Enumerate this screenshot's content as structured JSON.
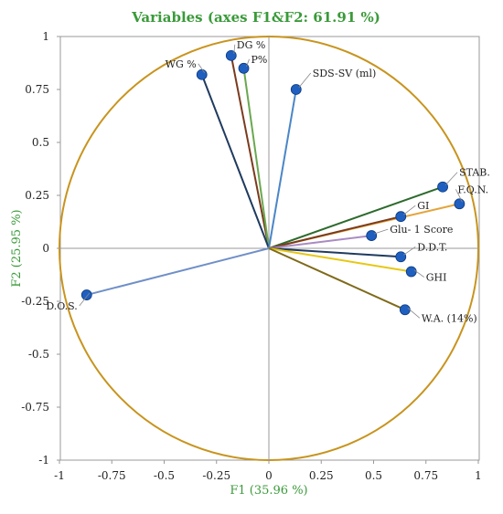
{
  "chart_data": {
    "type": "scatter",
    "title": "Variables (axes F1&F2: 61.91 %)",
    "xlabel": "F1 (35.96 %)",
    "ylabel": "F2 (25.95 %)",
    "xlim": [
      -1,
      1
    ],
    "ylim": [
      -1,
      1
    ],
    "x_ticks": [
      "-1",
      "-0.75",
      "-0.5",
      "-0.25",
      "0",
      "0.25",
      "0.5",
      "0.75",
      "1"
    ],
    "y_ticks": [
      "1",
      "0.75",
      "0.5",
      "0.25",
      "0",
      "-0.25",
      "-0.5",
      "-0.75",
      "-1"
    ],
    "grid": false,
    "circle_color": "#c8941e",
    "point_color": "#1f5fbf",
    "points": [
      {
        "label": "DG %",
        "x": -0.18,
        "y": 0.91,
        "color": "#7a3b1e"
      },
      {
        "label": "P%",
        "x": -0.12,
        "y": 0.85,
        "color": "#6aa84f"
      },
      {
        "label": "WG %",
        "x": -0.32,
        "y": 0.82,
        "color": "#1f3a5f"
      },
      {
        "label": "SDS-SV (ml)",
        "x": 0.13,
        "y": 0.75,
        "color": "#4a86c8"
      },
      {
        "label": "STAB.",
        "x": 0.83,
        "y": 0.29,
        "color": "#2d6a2d"
      },
      {
        "label": "F.Q.N.",
        "x": 0.91,
        "y": 0.21,
        "color": "#e3a53c"
      },
      {
        "label": "GI",
        "x": 0.63,
        "y": 0.15,
        "color": "#7a3b1e"
      },
      {
        "label": "Glu- 1 Score",
        "x": 0.49,
        "y": 0.06,
        "color": "#a98bc2"
      },
      {
        "label": "D.D.T.",
        "x": 0.63,
        "y": -0.04,
        "color": "#1f3a5f"
      },
      {
        "label": "GHI",
        "x": 0.68,
        "y": -0.11,
        "color": "#e6c814"
      },
      {
        "label": "W.A. (14%)",
        "x": 0.65,
        "y": -0.29,
        "color": "#7f6a1a"
      },
      {
        "label": "D.O.S.",
        "x": -0.87,
        "y": -0.22,
        "color": "#6f8fc8"
      }
    ]
  }
}
